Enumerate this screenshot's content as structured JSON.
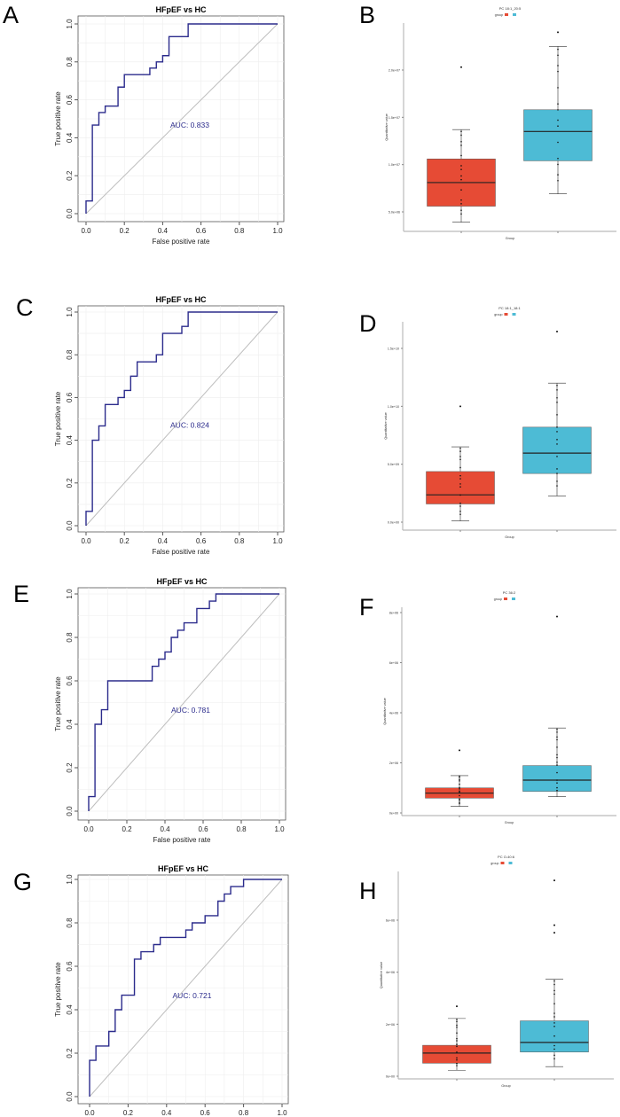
{
  "panel_letters": [
    "A",
    "B",
    "C",
    "D",
    "E",
    "F",
    "G",
    "H"
  ],
  "colors": {
    "roc": "#2b2b8c",
    "diag": "#bdbdbd",
    "group1": "#e64b35",
    "group2": "#4dbbd5"
  },
  "chart_data": [
    {
      "panel": "A",
      "type": "line",
      "title": "HFpEF vs HC",
      "xlabel": "False positive rate",
      "ylabel": "True positive rate",
      "xlim": [
        0,
        1
      ],
      "ylim": [
        0,
        1
      ],
      "xticks": [
        "0.0",
        "0.2",
        "0.4",
        "0.6",
        "0.8",
        "1.0"
      ],
      "yticks": [
        "0.0",
        "0.2",
        "0.4",
        "0.6",
        "0.8",
        "1.0"
      ],
      "annotation": "AUC: 0.833",
      "grid": true,
      "points": [
        [
          0,
          0
        ],
        [
          0,
          0.067
        ],
        [
          0.033,
          0.067
        ],
        [
          0.033,
          0.467
        ],
        [
          0.067,
          0.467
        ],
        [
          0.067,
          0.533
        ],
        [
          0.1,
          0.533
        ],
        [
          0.1,
          0.567
        ],
        [
          0.167,
          0.567
        ],
        [
          0.167,
          0.667
        ],
        [
          0.2,
          0.667
        ],
        [
          0.2,
          0.733
        ],
        [
          0.333,
          0.733
        ],
        [
          0.333,
          0.767
        ],
        [
          0.367,
          0.767
        ],
        [
          0.367,
          0.8
        ],
        [
          0.4,
          0.8
        ],
        [
          0.4,
          0.833
        ],
        [
          0.433,
          0.833
        ],
        [
          0.433,
          0.933
        ],
        [
          0.533,
          0.933
        ],
        [
          0.533,
          1
        ],
        [
          1,
          1
        ]
      ]
    },
    {
      "panel": "B",
      "type": "box",
      "title": "PC 18:1_20:5",
      "legend_title": "group",
      "xlabel": "Group",
      "ylabel": "Quantitative value",
      "ylim": [
        2900000,
        25000000
      ],
      "yticks": [
        {
          "v": 5000000,
          "label": "5.0e+06"
        },
        {
          "v": 10000000,
          "label": "1.0e+07"
        },
        {
          "v": 15000000,
          "label": "1.5e+07"
        },
        {
          "v": 20000000,
          "label": "2.0e+07"
        }
      ],
      "boxes": [
        {
          "min": 3900000,
          "q1": 5600000,
          "median": 8100000,
          "q3": 10600000,
          "max": 13700000,
          "outliers": [
            20300000
          ]
        },
        {
          "min": 6900000,
          "q1": 10400000,
          "median": 13500000,
          "q3": 15800000,
          "max": 22500000,
          "outliers": [
            24000000
          ]
        }
      ]
    },
    {
      "panel": "C",
      "type": "line",
      "title": "HFpEF vs HC",
      "xlabel": "False positive rate",
      "ylabel": "True positive rate",
      "xlim": [
        0,
        1
      ],
      "ylim": [
        0,
        1
      ],
      "xticks": [
        "0.0",
        "0.2",
        "0.4",
        "0.6",
        "0.8",
        "1.0"
      ],
      "yticks": [
        "0.0",
        "0.2",
        "0.4",
        "0.6",
        "0.8",
        "1.0"
      ],
      "annotation": "AUC: 0.824",
      "grid": true,
      "points": [
        [
          0,
          0
        ],
        [
          0,
          0.067
        ],
        [
          0.033,
          0.067
        ],
        [
          0.033,
          0.4
        ],
        [
          0.067,
          0.4
        ],
        [
          0.067,
          0.467
        ],
        [
          0.1,
          0.467
        ],
        [
          0.1,
          0.567
        ],
        [
          0.167,
          0.567
        ],
        [
          0.167,
          0.6
        ],
        [
          0.2,
          0.6
        ],
        [
          0.2,
          0.633
        ],
        [
          0.233,
          0.633
        ],
        [
          0.233,
          0.7
        ],
        [
          0.267,
          0.7
        ],
        [
          0.267,
          0.767
        ],
        [
          0.367,
          0.767
        ],
        [
          0.367,
          0.8
        ],
        [
          0.4,
          0.8
        ],
        [
          0.4,
          0.9
        ],
        [
          0.5,
          0.9
        ],
        [
          0.5,
          0.933
        ],
        [
          0.533,
          0.933
        ],
        [
          0.533,
          1
        ],
        [
          1,
          1
        ]
      ]
    },
    {
      "panel": "D",
      "type": "box",
      "title": "PC 18:1_18:1",
      "legend_title": "group",
      "xlabel": "Group",
      "ylabel": "Quantitative value",
      "ylim": [
        -700000000,
        17000000000
      ],
      "yticks": [
        {
          "v": 0,
          "label": "0.0e+00"
        },
        {
          "v": 5000000000,
          "label": "5.0e+09"
        },
        {
          "v": 10000000000,
          "label": "1.0e+10"
        },
        {
          "v": 15000000000,
          "label": "1.5e+10"
        }
      ],
      "boxes": [
        {
          "min": 100000000,
          "q1": 1570000000,
          "median": 2360000000,
          "q3": 4370000000,
          "max": 6500000000,
          "outliers": [
            10000000000
          ]
        },
        {
          "min": 2260000000,
          "q1": 4200000000,
          "median": 5960000000,
          "q3": 8200000000,
          "max": 12000000000,
          "outliers": [
            16450000000
          ]
        }
      ]
    },
    {
      "panel": "E",
      "type": "line",
      "title": "HFpEF vs HC",
      "xlabel": "False positive rate",
      "ylabel": "True positive rate",
      "xlim": [
        0,
        1
      ],
      "ylim": [
        0,
        1
      ],
      "xticks": [
        "0.0",
        "0.2",
        "0.4",
        "0.6",
        "0.8",
        "1.0"
      ],
      "yticks": [
        "0.0",
        "0.2",
        "0.4",
        "0.6",
        "0.8",
        "1.0"
      ],
      "annotation": "AUC: 0.781",
      "grid": true,
      "points": [
        [
          0,
          0
        ],
        [
          0,
          0.067
        ],
        [
          0.033,
          0.067
        ],
        [
          0.033,
          0.4
        ],
        [
          0.067,
          0.4
        ],
        [
          0.067,
          0.467
        ],
        [
          0.1,
          0.467
        ],
        [
          0.1,
          0.6
        ],
        [
          0.333,
          0.6
        ],
        [
          0.333,
          0.667
        ],
        [
          0.367,
          0.667
        ],
        [
          0.367,
          0.7
        ],
        [
          0.4,
          0.7
        ],
        [
          0.4,
          0.733
        ],
        [
          0.433,
          0.733
        ],
        [
          0.433,
          0.8
        ],
        [
          0.467,
          0.8
        ],
        [
          0.467,
          0.833
        ],
        [
          0.5,
          0.833
        ],
        [
          0.5,
          0.867
        ],
        [
          0.567,
          0.867
        ],
        [
          0.567,
          0.933
        ],
        [
          0.633,
          0.933
        ],
        [
          0.633,
          0.967
        ],
        [
          0.667,
          0.967
        ],
        [
          0.667,
          1
        ],
        [
          1,
          1
        ]
      ]
    },
    {
      "panel": "F",
      "type": "box",
      "title": "PC 36:2",
      "legend_title": "group",
      "xlabel": "Group",
      "ylabel": "Quantitative value",
      "ylim": [
        -100000,
        8300000
      ],
      "yticks": [
        {
          "v": 0,
          "label": "0e+00"
        },
        {
          "v": 2000000,
          "label": "2e+06"
        },
        {
          "v": 4000000,
          "label": "4e+06"
        },
        {
          "v": 6000000,
          "label": "6e+06"
        },
        {
          "v": 8000000,
          "label": "8e+06"
        }
      ],
      "boxes": [
        {
          "min": 260000,
          "q1": 590000,
          "median": 790000,
          "q3": 1000000,
          "max": 1490000,
          "outliers": [
            2500000
          ]
        },
        {
          "min": 650000,
          "q1": 860000,
          "median": 1310000,
          "q3": 1890000,
          "max": 3390000,
          "outliers": [
            7840000
          ]
        }
      ]
    },
    {
      "panel": "G",
      "type": "line",
      "title": "HFpEF vs HC",
      "xlabel": "False positive rate",
      "ylabel": "True positive rate",
      "xlim": [
        0,
        1
      ],
      "ylim": [
        0,
        1
      ],
      "xticks": [
        "0.0",
        "0.2",
        "0.4",
        "0.6",
        "0.8",
        "1.0"
      ],
      "yticks": [
        "0.0",
        "0.2",
        "0.4",
        "0.6",
        "0.8",
        "1.0"
      ],
      "annotation": "AUC: 0.721",
      "grid": true,
      "points": [
        [
          0,
          0
        ],
        [
          0,
          0.167
        ],
        [
          0.033,
          0.167
        ],
        [
          0.033,
          0.233
        ],
        [
          0.1,
          0.233
        ],
        [
          0.1,
          0.3
        ],
        [
          0.133,
          0.3
        ],
        [
          0.133,
          0.4
        ],
        [
          0.167,
          0.4
        ],
        [
          0.167,
          0.467
        ],
        [
          0.233,
          0.467
        ],
        [
          0.233,
          0.633
        ],
        [
          0.267,
          0.633
        ],
        [
          0.267,
          0.667
        ],
        [
          0.333,
          0.667
        ],
        [
          0.333,
          0.7
        ],
        [
          0.367,
          0.7
        ],
        [
          0.367,
          0.733
        ],
        [
          0.5,
          0.733
        ],
        [
          0.5,
          0.767
        ],
        [
          0.533,
          0.767
        ],
        [
          0.533,
          0.8
        ],
        [
          0.6,
          0.8
        ],
        [
          0.6,
          0.833
        ],
        [
          0.667,
          0.833
        ],
        [
          0.667,
          0.9
        ],
        [
          0.7,
          0.9
        ],
        [
          0.7,
          0.933
        ],
        [
          0.733,
          0.933
        ],
        [
          0.733,
          0.967
        ],
        [
          0.8,
          0.967
        ],
        [
          0.8,
          1
        ],
        [
          1,
          1
        ]
      ]
    },
    {
      "panel": "H",
      "type": "box",
      "title": "PC O-40:6",
      "legend_title": "group",
      "xlabel": "Group",
      "ylabel": "Quantitative value",
      "ylim": [
        -100000,
        8300000
      ],
      "yticks": [
        {
          "v": 0,
          "label": "0e+00"
        },
        {
          "v": 2000000,
          "label": "2e+06"
        },
        {
          "v": 4000000,
          "label": "4e+06"
        },
        {
          "v": 6000000,
          "label": "6e+06"
        }
      ],
      "boxes": [
        {
          "min": 230000,
          "q1": 500000,
          "median": 890000,
          "q3": 1190000,
          "max": 2220000,
          "outliers": [
            2690000
          ]
        },
        {
          "min": 370000,
          "q1": 930000,
          "median": 1300000,
          "q3": 2130000,
          "max": 3730000,
          "outliers": [
            5520000,
            5810000,
            7530000
          ]
        }
      ]
    }
  ]
}
